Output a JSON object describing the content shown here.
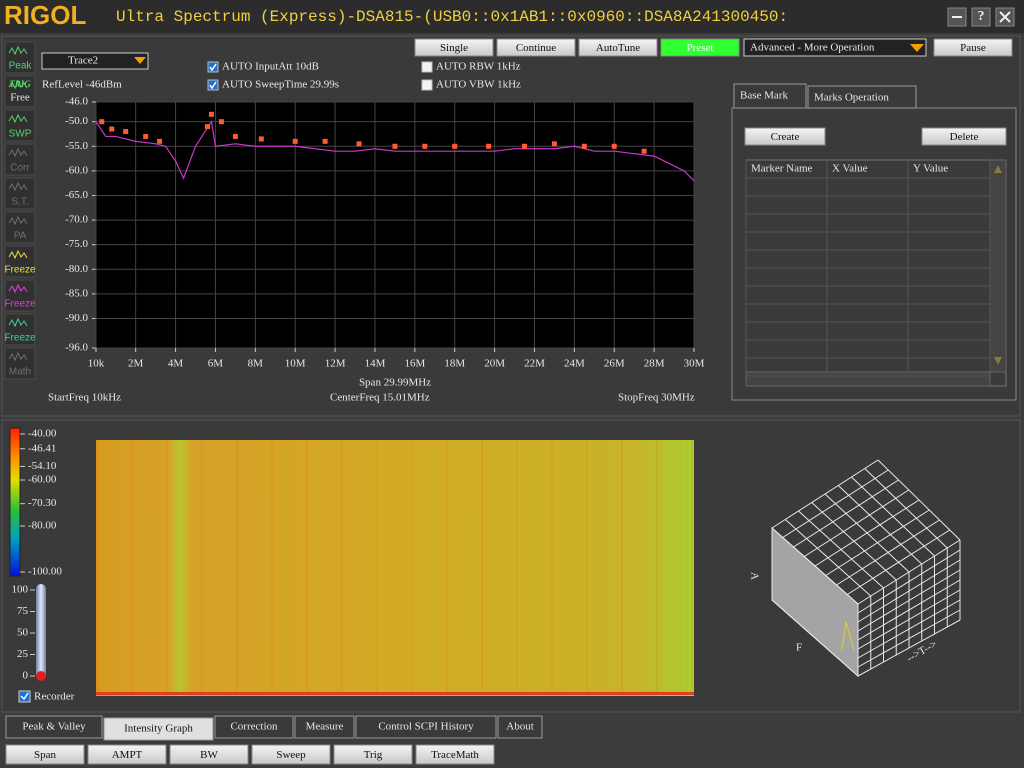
{
  "window": {
    "logo": "RIGOL",
    "title": "Ultra Spectrum (Express)-DSA815-(USB0::0x1AB1::0x0960::DSA8A241300450:",
    "help": "?"
  },
  "sidebar": [
    {
      "label": "Peak",
      "color": "#5ad06a"
    },
    {
      "label": "TRIG",
      "sub": "Free",
      "color": "#5ad06a"
    },
    {
      "label": "SWP",
      "color": "#5ad06a"
    },
    {
      "label": "Corr",
      "color": "#707070"
    },
    {
      "label": "S.T.",
      "color": "#707070"
    },
    {
      "label": "PA",
      "color": "#707070"
    },
    {
      "label": "Freeze",
      "color": "#e8e040"
    },
    {
      "label": "Freeze",
      "color": "#e040e0"
    },
    {
      "label": "Freeze",
      "color": "#40d0a0"
    },
    {
      "label": "Math",
      "color": "#707070"
    }
  ],
  "toolbar": {
    "trace": "Trace2",
    "ref_level": "RefLevel -46dBm",
    "input_att": "AUTO InputAtt 10dB",
    "sweep_time": "AUTO SweepTime 29.99s",
    "rbw": "AUTO RBW 1kHz",
    "vbw": "AUTO VBW 1kHz",
    "buttons": [
      "Single",
      "Continue",
      "AutoTune",
      "Preset"
    ],
    "mode": "Advanced - More Operation",
    "pause": "Pause"
  },
  "spectrum": {
    "xlim": [
      0.01,
      30
    ],
    "ylim": [
      -96,
      -46
    ],
    "xticks": [
      {
        "value": 0.01,
        "label": "10k"
      },
      {
        "value": 2,
        "label": "2M"
      },
      {
        "value": 4,
        "label": "4M"
      },
      {
        "value": 6,
        "label": "6M"
      },
      {
        "value": 8,
        "label": "8M"
      },
      {
        "value": 10,
        "label": "10M"
      },
      {
        "value": 12,
        "label": "12M"
      },
      {
        "value": 14,
        "label": "14M"
      },
      {
        "value": 16,
        "label": "16M"
      },
      {
        "value": 18,
        "label": "18M"
      },
      {
        "value": 20,
        "label": "20M"
      },
      {
        "value": 22,
        "label": "22M"
      },
      {
        "value": 24,
        "label": "24M"
      },
      {
        "value": 26,
        "label": "26M"
      },
      {
        "value": 28,
        "label": "28M"
      },
      {
        "value": 30,
        "label": "30M"
      }
    ],
    "yticks": [
      {
        "value": -46,
        "label": "-46.0"
      },
      {
        "value": -50,
        "label": "-50.0"
      },
      {
        "value": -55,
        "label": "-55.0"
      },
      {
        "value": -60,
        "label": "-60.0"
      },
      {
        "value": -65,
        "label": "-65.0"
      },
      {
        "value": -70,
        "label": "-70.0"
      },
      {
        "value": -75,
        "label": "-75.0"
      },
      {
        "value": -80,
        "label": "-80.0"
      },
      {
        "value": -85,
        "label": "-85.0"
      },
      {
        "value": -90,
        "label": "-90.0"
      },
      {
        "value": -96,
        "label": "-96.0"
      }
    ],
    "trace": {
      "color": "#c838c8",
      "x": [
        0.01,
        0.5,
        1,
        2,
        3,
        3.5,
        4,
        4.4,
        5,
        5.8,
        6,
        7,
        8,
        9,
        10,
        11,
        12,
        13,
        14,
        15,
        16,
        17,
        18,
        19,
        20,
        21,
        22,
        23,
        24,
        25,
        26,
        27,
        28,
        29,
        29.5,
        30
      ],
      "y": [
        -50,
        -53,
        -53,
        -54,
        -54.5,
        -55,
        -58,
        -61.5,
        -55,
        -50,
        -55,
        -54.5,
        -55,
        -55,
        -55,
        -55.5,
        -56,
        -56,
        -55.5,
        -56,
        -56,
        -56,
        -56,
        -56,
        -56,
        -55.5,
        -55.5,
        -55.5,
        -55,
        -56,
        -56,
        -56.5,
        -57,
        -59,
        -60,
        -62
      ]
    },
    "peaks": {
      "color": "#ff5a32",
      "x": [
        0.3,
        0.8,
        1.5,
        2.5,
        3.2,
        5.6,
        5.8,
        6.3,
        7,
        8.3,
        10,
        11.5,
        13.2,
        15,
        16.5,
        18,
        19.7,
        21.5,
        23,
        24.5,
        26,
        27.5
      ],
      "y": [
        -50,
        -51.5,
        -52,
        -53,
        -54,
        -51,
        -48.5,
        -50,
        -53,
        -53.5,
        -54,
        -54,
        -54.5,
        -55,
        -55,
        -55,
        -55,
        -55,
        -54.5,
        -55,
        -55,
        -56
      ]
    },
    "span": "Span 29.99MHz",
    "start": "StartFreq 10kHz",
    "center": "CenterFreq 15.01MHz",
    "stop": "StopFreq 30MHz"
  },
  "markers": {
    "tabs": [
      "Base Mark",
      "Marks Operation"
    ],
    "buttons": [
      "Create",
      "Delete"
    ],
    "columns": [
      "Marker Name",
      "X Value",
      "Y Value"
    ]
  },
  "intensity": {
    "scale": [
      {
        "value": -40,
        "label": "-40.00"
      },
      {
        "value": -46.41,
        "label": "-46.41"
      },
      {
        "value": -54.1,
        "label": "-54.10"
      },
      {
        "value": -60,
        "label": "-60.00"
      },
      {
        "value": -70.3,
        "label": "-70.30"
      },
      {
        "value": -80,
        "label": "-80.00"
      },
      {
        "value": -100,
        "label": "-100.00"
      }
    ],
    "level_ticks": [
      100,
      75,
      50,
      25,
      0
    ],
    "recorder": "Recorder"
  },
  "plot3d_axes": [
    "A",
    "F",
    "-->T-->"
  ],
  "bottom_tabs": [
    "Peak & Valley",
    "Intensity Graph",
    "Correction",
    "Measure",
    "Control SCPI History",
    "About"
  ],
  "function_buttons": [
    "Span",
    "AMPT",
    "BW",
    "Sweep",
    "Trig",
    "TraceMath"
  ]
}
